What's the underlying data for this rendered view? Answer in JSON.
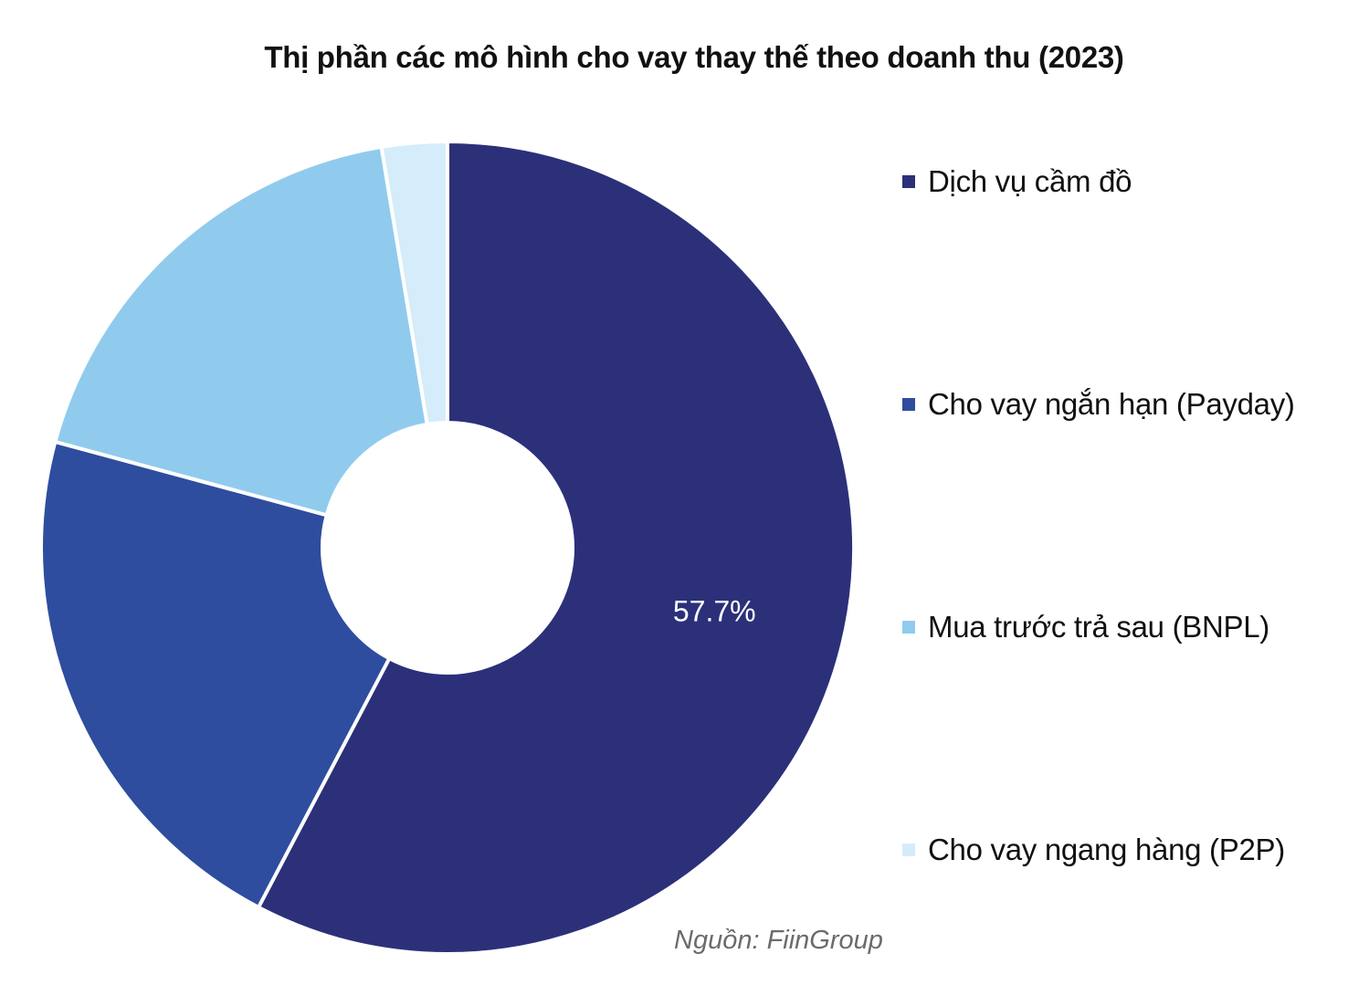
{
  "chart_data": {
    "type": "pie",
    "variant": "donut",
    "title": "Thị phần các mô hình cho vay thay thế theo doanh thu (2023)",
    "categories": [
      "Dịch vụ cầm đồ",
      "Cho vay ngắn hạn (Payday)",
      "Mua trước trả sau (BNPL)",
      "Cho vay ngang hàng (P2P)"
    ],
    "values": [
      57.7,
      21.5,
      18.2,
      2.6
    ],
    "unit": "%",
    "colors": [
      "#2b3079",
      "#2e4d9e",
      "#90cbee",
      "#d5ecfa"
    ],
    "data_labels": [
      "57.7%",
      "",
      "",
      ""
    ],
    "legend_position": "right",
    "start_angle": "top",
    "direction": "clockwise"
  },
  "source": "Nguồn: FiinGroup"
}
